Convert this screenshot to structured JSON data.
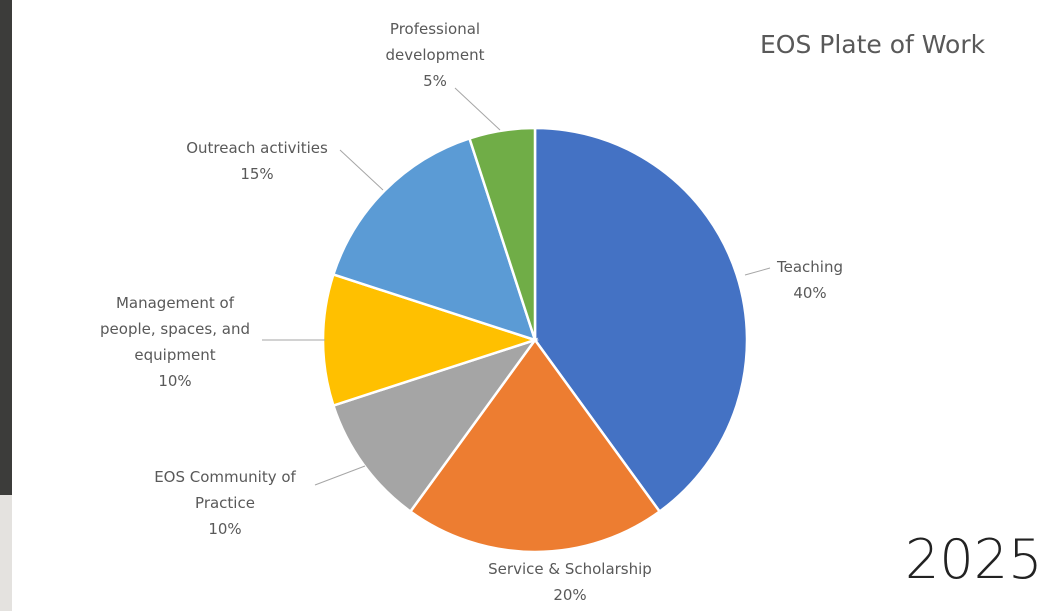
{
  "chart_data": {
    "type": "pie",
    "title": "EOS Plate of Work",
    "categories": [
      "Teaching",
      "Service & Scholarship",
      "EOS Community of Practice",
      "Management of people, spaces, and equipment",
      "Outreach activities",
      "Professional development"
    ],
    "values": [
      40,
      20,
      10,
      10,
      15,
      5
    ],
    "value_labels": [
      "40%",
      "20%",
      "10%",
      "10%",
      "15%",
      "5%"
    ],
    "colors": [
      "#4472c4",
      "#ed7d31",
      "#a5a5a5",
      "#ffc000",
      "#5b9bd5",
      "#70ad47"
    ],
    "annotations": [
      "2025"
    ]
  }
}
